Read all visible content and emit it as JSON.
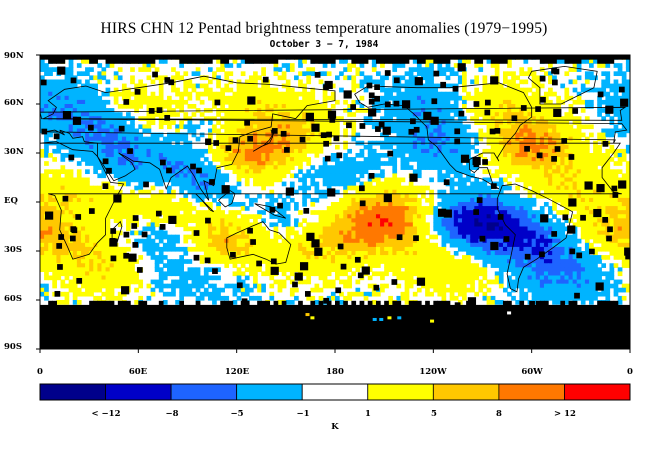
{
  "map": {
    "title": "HIRS CHN 12 Pentad brightness temperature anomalies (1979−1995)",
    "subtitle": "October 3 − 7, 1984",
    "lat_labels": [
      "90N",
      "60N",
      "30N",
      "EQ",
      "30S",
      "60S",
      "90S"
    ],
    "lon_labels": [
      "0",
      "60E",
      "120E",
      "180",
      "120W",
      "60W",
      "0"
    ],
    "colorbar": {
      "colors": [
        "#00008b",
        "#0000c8",
        "#1e64ff",
        "#00b4ff",
        "#ffffff",
        "#ffff00",
        "#ffc800",
        "#ff7800",
        "#ff0000"
      ],
      "labels": [
        "< −12",
        "−8",
        "−5",
        "−1",
        "1",
        "5",
        "8",
        "> 12"
      ],
      "unit": "K"
    },
    "missing_color": "#000000"
  }
}
